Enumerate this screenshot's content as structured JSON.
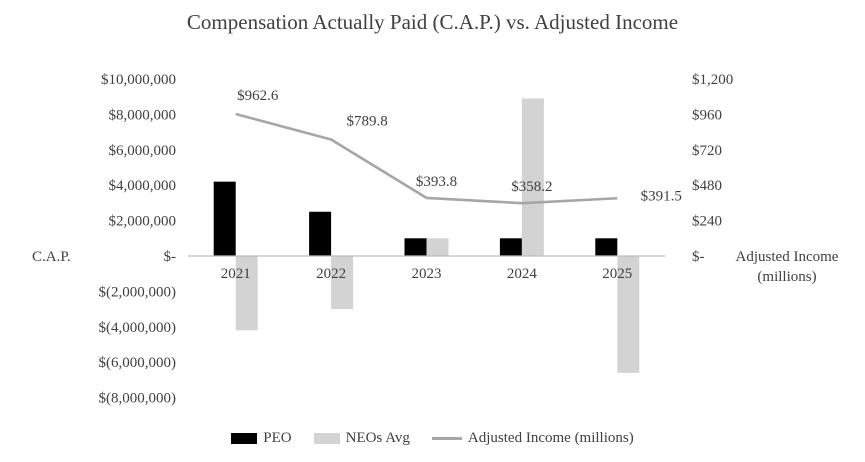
{
  "chart_data": {
    "type": "bar",
    "title": "Compensation Actually Paid (C.A.P.) vs. Adjusted Income",
    "categories": [
      "2021",
      "2022",
      "2023",
      "2024",
      "2025"
    ],
    "series": [
      {
        "name": "PEO",
        "type": "bar",
        "axis": "left",
        "color": "#000000",
        "values": [
          4200000,
          2500000,
          1000000,
          1000000,
          1000000
        ]
      },
      {
        "name": "NEOs Avg",
        "type": "bar",
        "axis": "left",
        "color": "#d3d3d3",
        "values": [
          -4200000,
          -3000000,
          1000000,
          8900000,
          -6600000
        ]
      },
      {
        "name": "Adjusted Income (millions)",
        "type": "line",
        "axis": "right",
        "color": "#a6a6a6",
        "values": [
          962.6,
          789.8,
          393.8,
          358.2,
          391.5
        ],
        "labels": [
          "$962.6",
          "$789.8",
          "$393.8",
          "$358.2",
          "$391.5"
        ]
      }
    ],
    "y_left": {
      "label": "C.A.P.",
      "ylim": [
        -8000000,
        10000000
      ],
      "ticks": [
        10000000,
        8000000,
        6000000,
        4000000,
        2000000,
        0,
        -2000000,
        -4000000,
        -6000000,
        -8000000
      ],
      "tick_labels": [
        "$10,000,000",
        "$8,000,000",
        "$6,000,000",
        "$4,000,000",
        "$2,000,000",
        "$-",
        "$(2,000,000)",
        "$(4,000,000)",
        "$(6,000,000)",
        "$(8,000,000)"
      ]
    },
    "y_right": {
      "label_lines": [
        "Adjusted Income",
        "(millions)"
      ],
      "ylim": [
        0,
        1200
      ],
      "ticks": [
        1200,
        960,
        720,
        480,
        240,
        0
      ],
      "tick_labels": [
        "$1,200",
        "$960",
        "$720",
        "$480",
        "$240",
        "$-"
      ]
    },
    "grid": false,
    "legend_position": "bottom"
  }
}
